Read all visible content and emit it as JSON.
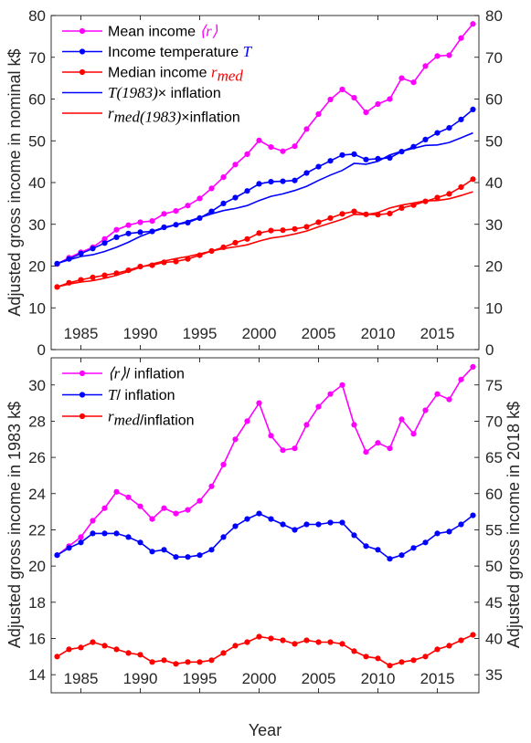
{
  "colors": {
    "magenta": "#ff00ff",
    "blue": "#0000ff",
    "red": "#ff0000"
  },
  "chart_data": [
    {
      "type": "line",
      "xlim": [
        1982.5,
        2018.5
      ],
      "ylim": [
        0,
        80
      ],
      "xticks": [
        1985,
        1990,
        1995,
        2000,
        2005,
        2010,
        2015
      ],
      "yticks": [
        0,
        10,
        20,
        30,
        40,
        50,
        60,
        70,
        80
      ],
      "ylabel": "Adjusted gross income in nominal k$",
      "grid": false,
      "legend_position": "top-left",
      "x": [
        1983,
        1984,
        1985,
        1986,
        1987,
        1988,
        1989,
        1990,
        1991,
        1992,
        1993,
        1994,
        1995,
        1996,
        1997,
        1998,
        1999,
        2000,
        2001,
        2002,
        2003,
        2004,
        2005,
        2006,
        2007,
        2008,
        2009,
        2010,
        2011,
        2012,
        2013,
        2014,
        2015,
        2016,
        2017,
        2018
      ],
      "series": [
        {
          "name_pre": "Mean income ",
          "name_sym": "⟨r⟩",
          "name_post": "",
          "color": "magenta",
          "markers": true,
          "values": [
            20.5,
            22.0,
            23.3,
            24.5,
            26.5,
            28.7,
            29.8,
            30.5,
            30.8,
            32.5,
            33.2,
            34.5,
            36.2,
            38.6,
            41.3,
            44.3,
            46.8,
            50.1,
            48.5,
            47.5,
            48.7,
            52.8,
            56.4,
            59.9,
            62.3,
            60.3,
            56.8,
            58.8,
            60.0,
            65.0,
            64.0,
            67.9,
            70.3,
            70.5,
            74.6,
            78.0
          ]
        },
        {
          "name_pre": "Income temperature ",
          "name_sym": "T",
          "name_post": "",
          "color": "blue",
          "markers": true,
          "values": [
            20.6,
            21.7,
            23.0,
            24.2,
            25.5,
            26.9,
            27.8,
            28.1,
            28.3,
            29.3,
            29.9,
            30.4,
            31.5,
            33.1,
            35.0,
            36.4,
            38.0,
            39.7,
            40.2,
            40.3,
            40.5,
            42.3,
            43.8,
            45.2,
            46.6,
            46.8,
            45.5,
            45.7,
            45.9,
            47.4,
            48.6,
            50.3,
            51.9,
            53.1,
            55.1,
            57.5
          ]
        },
        {
          "name_pre": "Median income ",
          "name_sym": "r",
          "name_sub": "med",
          "name_post": "",
          "color": "red",
          "markers": true,
          "values": [
            15.0,
            16.0,
            16.7,
            17.3,
            17.8,
            18.3,
            19.0,
            19.9,
            20.2,
            20.9,
            21.1,
            21.7,
            22.6,
            23.6,
            24.5,
            25.6,
            26.5,
            27.9,
            28.5,
            28.6,
            28.9,
            29.4,
            30.5,
            31.5,
            32.5,
            33.1,
            32.4,
            32.3,
            32.6,
            33.9,
            34.6,
            35.5,
            36.4,
            37.3,
            38.9,
            40.8
          ]
        },
        {
          "name_sym": "T(1983)",
          "name_post": "× inflation",
          "color": "blue",
          "markers": false,
          "values": [
            20.6,
            21.5,
            22.3,
            22.7,
            23.5,
            24.5,
            25.7,
            27.1,
            28.2,
            29.1,
            29.9,
            30.7,
            31.6,
            32.5,
            33.3,
            33.8,
            34.5,
            35.7,
            36.7,
            37.3,
            38.1,
            39.1,
            40.5,
            41.8,
            42.9,
            44.6,
            44.4,
            45.1,
            46.6,
            47.5,
            48.2,
            48.9,
            49.0,
            49.6,
            50.7,
            51.9
          ]
        },
        {
          "name_sym": "r",
          "name_sub": "med",
          "name_mid": "(1983)",
          "name_post": "×inflation",
          "color": "red",
          "markers": false,
          "values": [
            15.0,
            15.7,
            16.2,
            16.5,
            17.1,
            17.8,
            18.7,
            19.7,
            20.5,
            21.2,
            21.8,
            22.3,
            22.9,
            23.6,
            24.2,
            24.6,
            25.1,
            26.0,
            26.7,
            27.1,
            27.7,
            28.4,
            29.4,
            30.3,
            31.2,
            32.4,
            32.3,
            32.8,
            33.9,
            34.6,
            35.1,
            35.6,
            35.7,
            36.1,
            36.9,
            37.8
          ]
        }
      ]
    },
    {
      "type": "line",
      "xlim": [
        1982.5,
        2018.5
      ],
      "ylim": [
        13,
        31.5
      ],
      "xticks": [
        1985,
        1990,
        1995,
        2000,
        2005,
        2010,
        2015
      ],
      "yticks": [
        14,
        16,
        18,
        20,
        22,
        24,
        26,
        28,
        30
      ],
      "y2ticks": [
        35,
        40,
        45,
        50,
        55,
        60,
        65,
        70,
        75
      ],
      "y2_factor": 2.5,
      "xlabel": "Year",
      "ylabel": "Adjusted gross income in 1983 k$",
      "y2label": "Adjusted gross income in 2018 k$",
      "grid": false,
      "legend_position": "top-left",
      "x": [
        1983,
        1984,
        1985,
        1986,
        1987,
        1988,
        1989,
        1990,
        1991,
        1992,
        1993,
        1994,
        1995,
        1996,
        1997,
        1998,
        1999,
        2000,
        2001,
        2002,
        2003,
        2004,
        2005,
        2006,
        2007,
        2008,
        2009,
        2010,
        2011,
        2012,
        2013,
        2014,
        2015,
        2016,
        2017,
        2018
      ],
      "series": [
        {
          "name_sym": "⟨r⟩",
          "name_post": "/ inflation",
          "color": "magenta",
          "markers": true,
          "values": [
            20.6,
            21.1,
            21.6,
            22.5,
            23.2,
            24.1,
            23.8,
            23.3,
            22.6,
            23.2,
            22.9,
            23.1,
            23.6,
            24.4,
            25.6,
            27.0,
            28.0,
            29.0,
            27.2,
            26.4,
            26.5,
            27.8,
            28.8,
            29.5,
            30.0,
            27.8,
            26.3,
            26.8,
            26.5,
            28.1,
            27.3,
            28.6,
            29.5,
            29.2,
            30.3,
            31.0
          ]
        },
        {
          "name_sym": "T",
          "name_post": "/ inflation",
          "color": "blue",
          "markers": true,
          "values": [
            20.6,
            21.0,
            21.3,
            21.8,
            21.8,
            21.8,
            21.6,
            21.3,
            20.8,
            20.9,
            20.5,
            20.5,
            20.6,
            20.9,
            21.6,
            22.2,
            22.6,
            22.9,
            22.6,
            22.3,
            22.0,
            22.3,
            22.3,
            22.4,
            22.4,
            21.7,
            21.1,
            20.9,
            20.4,
            20.6,
            21.0,
            21.3,
            21.8,
            21.9,
            22.3,
            22.8
          ]
        },
        {
          "name_sym": "r",
          "name_sub": "med",
          "name_post": "/inflation",
          "color": "red",
          "markers": true,
          "values": [
            15.0,
            15.4,
            15.5,
            15.8,
            15.6,
            15.4,
            15.2,
            15.1,
            14.7,
            14.8,
            14.6,
            14.7,
            14.7,
            14.8,
            15.2,
            15.6,
            15.8,
            16.1,
            16.0,
            15.9,
            15.7,
            15.9,
            15.8,
            15.8,
            15.7,
            15.3,
            15.0,
            14.9,
            14.5,
            14.7,
            14.8,
            15.0,
            15.4,
            15.6,
            15.9,
            16.2
          ]
        }
      ]
    }
  ]
}
